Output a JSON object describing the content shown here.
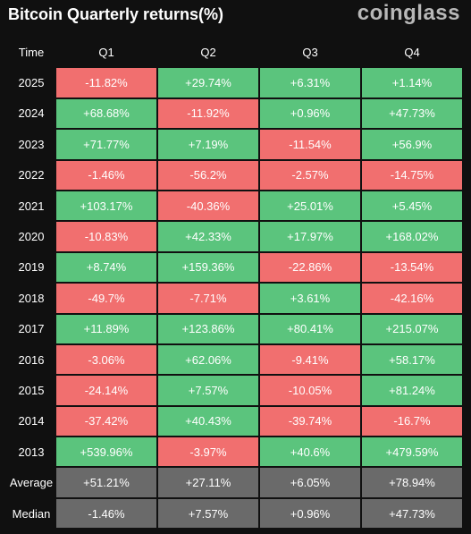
{
  "header": {
    "title": "Bitcoin Quarterly returns(%)",
    "brand": "coinglass"
  },
  "colors": {
    "positive": "#5bc47d",
    "negative": "#f16f6f",
    "summary": "#6a6a6a",
    "background": "#101010"
  },
  "chart_data": {
    "type": "table",
    "title": "Bitcoin Quarterly returns(%)",
    "columns": [
      "Time",
      "Q1",
      "Q2",
      "Q3",
      "Q4"
    ],
    "rows": [
      {
        "label": "2025",
        "cells": [
          "-11.82%",
          "+29.74%",
          "+6.31%",
          "+1.14%"
        ],
        "values": [
          -11.82,
          29.74,
          6.31,
          1.14
        ]
      },
      {
        "label": "2024",
        "cells": [
          "+68.68%",
          "-11.92%",
          "+0.96%",
          "+47.73%"
        ],
        "values": [
          68.68,
          -11.92,
          0.96,
          47.73
        ]
      },
      {
        "label": "2023",
        "cells": [
          "+71.77%",
          "+7.19%",
          "-11.54%",
          "+56.9%"
        ],
        "values": [
          71.77,
          7.19,
          -11.54,
          56.9
        ]
      },
      {
        "label": "2022",
        "cells": [
          "-1.46%",
          "-56.2%",
          "-2.57%",
          "-14.75%"
        ],
        "values": [
          -1.46,
          -56.2,
          -2.57,
          -14.75
        ]
      },
      {
        "label": "2021",
        "cells": [
          "+103.17%",
          "-40.36%",
          "+25.01%",
          "+5.45%"
        ],
        "values": [
          103.17,
          -40.36,
          25.01,
          5.45
        ]
      },
      {
        "label": "2020",
        "cells": [
          "-10.83%",
          "+42.33%",
          "+17.97%",
          "+168.02%"
        ],
        "values": [
          -10.83,
          42.33,
          17.97,
          168.02
        ]
      },
      {
        "label": "2019",
        "cells": [
          "+8.74%",
          "+159.36%",
          "-22.86%",
          "-13.54%"
        ],
        "values": [
          8.74,
          159.36,
          -22.86,
          -13.54
        ]
      },
      {
        "label": "2018",
        "cells": [
          "-49.7%",
          "-7.71%",
          "+3.61%",
          "-42.16%"
        ],
        "values": [
          -49.7,
          -7.71,
          3.61,
          -42.16
        ]
      },
      {
        "label": "2017",
        "cells": [
          "+11.89%",
          "+123.86%",
          "+80.41%",
          "+215.07%"
        ],
        "values": [
          11.89,
          123.86,
          80.41,
          215.07
        ]
      },
      {
        "label": "2016",
        "cells": [
          "-3.06%",
          "+62.06%",
          "-9.41%",
          "+58.17%"
        ],
        "values": [
          -3.06,
          62.06,
          -9.41,
          58.17
        ]
      },
      {
        "label": "2015",
        "cells": [
          "-24.14%",
          "+7.57%",
          "-10.05%",
          "+81.24%"
        ],
        "values": [
          -24.14,
          7.57,
          -10.05,
          81.24
        ]
      },
      {
        "label": "2014",
        "cells": [
          "-37.42%",
          "+40.43%",
          "-39.74%",
          "-16.7%"
        ],
        "values": [
          -37.42,
          40.43,
          -39.74,
          -16.7
        ]
      },
      {
        "label": "2013",
        "cells": [
          "+539.96%",
          "-3.97%",
          "+40.6%",
          "+479.59%"
        ],
        "values": [
          539.96,
          -3.97,
          40.6,
          479.59
        ]
      }
    ],
    "summary_rows": [
      {
        "label": "Average",
        "cells": [
          "+51.21%",
          "+27.11%",
          "+6.05%",
          "+78.94%"
        ],
        "values": [
          51.21,
          27.11,
          6.05,
          78.94
        ]
      },
      {
        "label": "Median",
        "cells": [
          "-1.46%",
          "+7.57%",
          "+0.96%",
          "+47.73%"
        ],
        "values": [
          -1.46,
          7.57,
          0.96,
          47.73
        ]
      }
    ]
  }
}
